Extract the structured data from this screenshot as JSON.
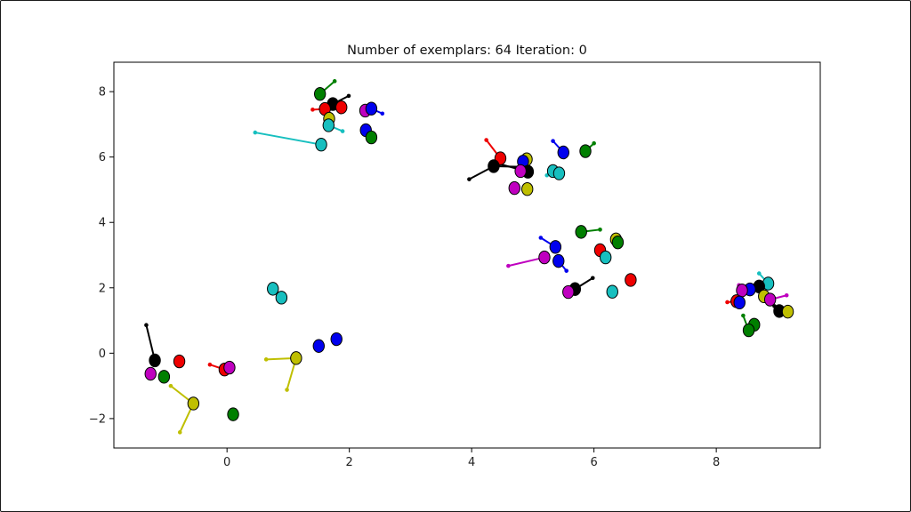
{
  "chart_data": {
    "type": "scatter",
    "title": "Number of exemplars: 64 Iteration: 0",
    "xlabel": "",
    "ylabel": "",
    "xlim": [
      -1.85,
      9.7
    ],
    "ylim": [
      -2.9,
      8.9
    ],
    "xticks": [
      0,
      2,
      4,
      6,
      8
    ],
    "yticks": [
      -2,
      0,
      2,
      4,
      6,
      8
    ],
    "xtick_labels": [
      "0",
      "2",
      "4",
      "6",
      "8"
    ],
    "ytick_labels": [
      "−2",
      "0",
      "2",
      "4",
      "6",
      "8"
    ],
    "grid": false,
    "legend": "none",
    "colors": {
      "b": "#0000ee",
      "g": "#007f00",
      "r": "#ee0000",
      "c": "#17bfbf",
      "m": "#bf00bf",
      "y": "#bfbf00",
      "k": "#000000"
    },
    "points": [
      {
        "x": 1.52,
        "y": 7.93,
        "c": "g",
        "px": 1.76,
        "py": 8.32
      },
      {
        "x": 1.73,
        "y": 7.62,
        "c": "k",
        "px": 1.99,
        "py": 7.87
      },
      {
        "x": 1.87,
        "y": 7.52,
        "c": "r"
      },
      {
        "x": 1.6,
        "y": 7.47,
        "c": "r",
        "px": 1.4,
        "py": 7.45
      },
      {
        "x": 2.26,
        "y": 7.42,
        "c": "m"
      },
      {
        "x": 2.36,
        "y": 7.48,
        "c": "b",
        "px": 2.54,
        "py": 7.33
      },
      {
        "x": 1.67,
        "y": 7.17,
        "c": "y"
      },
      {
        "x": 1.66,
        "y": 6.97,
        "c": "c",
        "px": 1.89,
        "py": 6.79
      },
      {
        "x": 2.27,
        "y": 6.82,
        "c": "b"
      },
      {
        "x": 2.36,
        "y": 6.6,
        "c": "g"
      },
      {
        "x": 1.54,
        "y": 6.38,
        "c": "c",
        "px": 0.46,
        "py": 6.75
      },
      {
        "x": 4.47,
        "y": 5.96,
        "c": "r",
        "px": 4.24,
        "py": 6.52
      },
      {
        "x": 4.36,
        "y": 5.72,
        "c": "k",
        "px": 3.96,
        "py": 5.32
      },
      {
        "x": 4.9,
        "y": 5.93,
        "c": "y"
      },
      {
        "x": 4.84,
        "y": 5.86,
        "c": "b"
      },
      {
        "x": 4.92,
        "y": 5.55,
        "c": "k",
        "px": 4.45,
        "py": 5.79
      },
      {
        "x": 4.8,
        "y": 5.57,
        "c": "m"
      },
      {
        "x": 5.5,
        "y": 6.14,
        "c": "b",
        "px": 5.33,
        "py": 6.49
      },
      {
        "x": 5.86,
        "y": 6.18,
        "c": "g",
        "px": 6.0,
        "py": 6.42
      },
      {
        "x": 5.33,
        "y": 5.57,
        "c": "c"
      },
      {
        "x": 5.43,
        "y": 5.5,
        "c": "c",
        "px": 5.23,
        "py": 5.44
      },
      {
        "x": 4.7,
        "y": 5.05,
        "c": "m"
      },
      {
        "x": 4.91,
        "y": 5.02,
        "c": "y"
      },
      {
        "x": 5.79,
        "y": 3.71,
        "c": "g",
        "px": 6.1,
        "py": 3.78
      },
      {
        "x": 6.36,
        "y": 3.48,
        "c": "y"
      },
      {
        "x": 6.39,
        "y": 3.39,
        "c": "g"
      },
      {
        "x": 5.37,
        "y": 3.25,
        "c": "b",
        "px": 5.13,
        "py": 3.53
      },
      {
        "x": 6.1,
        "y": 3.15,
        "c": "r"
      },
      {
        "x": 6.19,
        "y": 2.93,
        "c": "c"
      },
      {
        "x": 5.19,
        "y": 2.93,
        "c": "m",
        "px": 4.6,
        "py": 2.67
      },
      {
        "x": 5.42,
        "y": 2.82,
        "c": "b",
        "px": 5.55,
        "py": 2.52
      },
      {
        "x": 5.69,
        "y": 1.96,
        "c": "k",
        "px": 5.98,
        "py": 2.3
      },
      {
        "x": 5.58,
        "y": 1.87,
        "c": "m"
      },
      {
        "x": 6.3,
        "y": 1.88,
        "c": "c"
      },
      {
        "x": 6.6,
        "y": 2.24,
        "c": "r"
      },
      {
        "x": 8.85,
        "y": 2.13,
        "c": "c",
        "px": 8.7,
        "py": 2.44
      },
      {
        "x": 8.7,
        "y": 2.04,
        "c": "k",
        "px": 8.55,
        "py": 2.05
      },
      {
        "x": 8.55,
        "y": 1.95,
        "c": "b"
      },
      {
        "x": 8.42,
        "y": 1.92,
        "c": "m",
        "px": 8.37,
        "py": 2.08
      },
      {
        "x": 8.78,
        "y": 1.74,
        "c": "y"
      },
      {
        "x": 8.88,
        "y": 1.64,
        "c": "m",
        "px": 9.15,
        "py": 1.77
      },
      {
        "x": 8.33,
        "y": 1.59,
        "c": "r",
        "px": 8.18,
        "py": 1.56
      },
      {
        "x": 8.38,
        "y": 1.55,
        "c": "b"
      },
      {
        "x": 9.03,
        "y": 1.29,
        "c": "k",
        "px": 8.95,
        "py": 1.44
      },
      {
        "x": 9.17,
        "y": 1.27,
        "c": "y"
      },
      {
        "x": 8.62,
        "y": 0.87,
        "c": "g"
      },
      {
        "x": 8.53,
        "y": 0.7,
        "c": "g",
        "px": 8.44,
        "py": 1.15
      },
      {
        "x": -1.18,
        "y": -0.22,
        "c": "k",
        "px": -1.32,
        "py": 0.86
      },
      {
        "x": -0.78,
        "y": -0.25,
        "c": "r"
      },
      {
        "x": -1.25,
        "y": -0.63,
        "c": "m"
      },
      {
        "x": -1.03,
        "y": -0.72,
        "c": "g"
      },
      {
        "x": -0.04,
        "y": -0.5,
        "c": "r",
        "px": -0.28,
        "py": -0.35
      },
      {
        "x": 0.04,
        "y": -0.44,
        "c": "m"
      },
      {
        "x": -0.55,
        "y": -1.54,
        "c": "y",
        "px": -0.77,
        "py": -2.42
      },
      {
        "x": 0.1,
        "y": -1.87,
        "c": "g"
      },
      {
        "x": 0.75,
        "y": 1.97,
        "c": "c"
      },
      {
        "x": 0.89,
        "y": 1.7,
        "c": "c"
      },
      {
        "x": 1.13,
        "y": -0.15,
        "c": "y",
        "px": 0.64,
        "py": -0.19
      },
      {
        "x": 1.5,
        "y": 0.22,
        "c": "b"
      },
      {
        "x": 1.79,
        "y": 0.43,
        "c": "b"
      }
    ],
    "extra_links": [
      {
        "x1": -0.55,
        "y1": -1.54,
        "x2": -0.92,
        "y2": -1.0,
        "c": "y"
      },
      {
        "x1": 1.13,
        "y1": -0.15,
        "x2": 0.98,
        "y2": -1.12,
        "c": "y"
      },
      {
        "x1": 4.36,
        "y1": 5.72,
        "x2": 4.88,
        "y2": 5.7,
        "c": "k"
      }
    ]
  }
}
